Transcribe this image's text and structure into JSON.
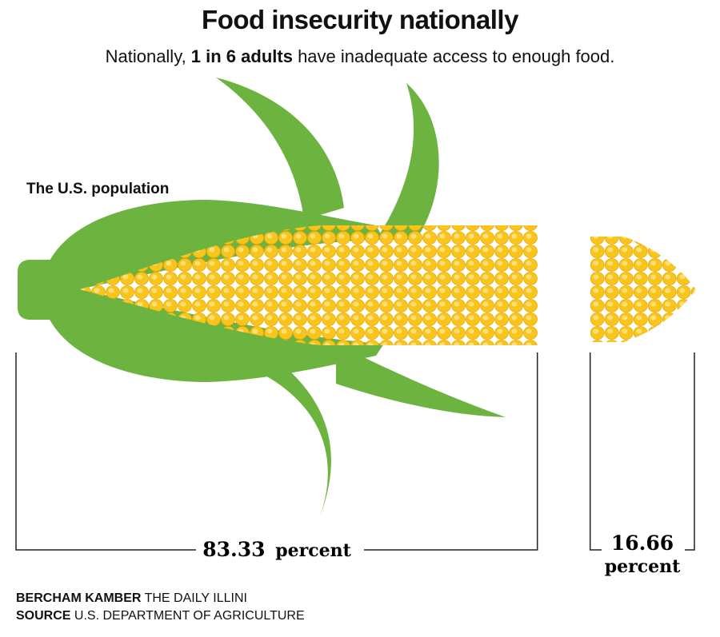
{
  "title": "Food insecurity nationally",
  "subtitle": {
    "before": "Nationally, ",
    "bold": "1 in 6 adults",
    "after": " have inadequate access to enough food."
  },
  "population_label": "The U.S. population",
  "colors": {
    "husk": "#6db33f",
    "kernel": "#f9c51b",
    "kernel_highlight": "#fde07a",
    "bracket": "#222222"
  },
  "chart_data": {
    "type": "bar",
    "title": "Food insecurity nationally",
    "categories": [
      "83.33 percent",
      "16.66 percent"
    ],
    "values": [
      83.33,
      16.66
    ],
    "unit": "percent",
    "labels": [
      {
        "value": "83.33",
        "unit": "percent"
      },
      {
        "value": "16.66",
        "unit": "percent"
      }
    ]
  },
  "credits": {
    "author_name": "BERCHAM KAMBER",
    "author_org": "THE DAILY ILLINI",
    "source_label": "SOURCE",
    "source_text": "U.S. DEPARTMENT OF AGRICULTURE"
  }
}
